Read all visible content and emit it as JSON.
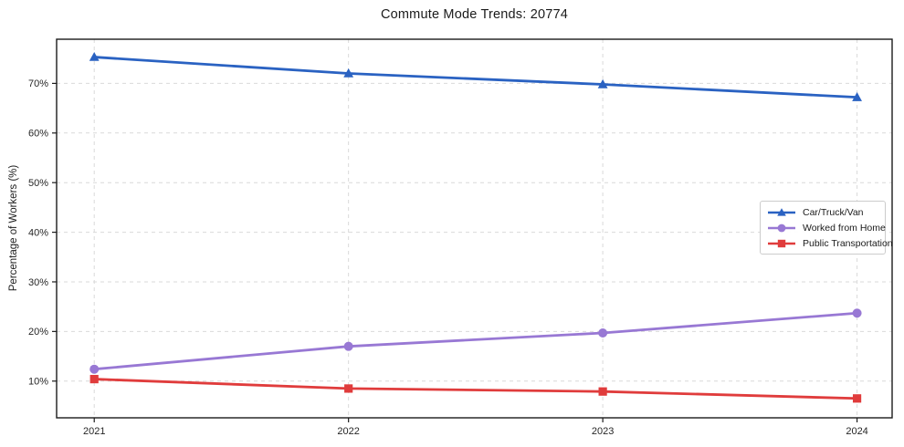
{
  "chart_data": {
    "type": "line",
    "title": "Commute Mode Trends: 20774",
    "xlabel": "",
    "ylabel": "Percentage of Workers (%)",
    "categories": [
      "2021",
      "2022",
      "2023",
      "2024"
    ],
    "series": [
      {
        "name": "Car/Truck/Van",
        "color": "#2a62c2",
        "marker": "triangle",
        "values": [
          75.3,
          72.0,
          69.8,
          67.2
        ]
      },
      {
        "name": "Worked from Home",
        "color": "#9878d4",
        "marker": "circle",
        "values": [
          12.4,
          17.0,
          19.7,
          23.7
        ]
      },
      {
        "name": "Public Transportation",
        "color": "#e03c3c",
        "marker": "square",
        "values": [
          10.4,
          8.5,
          7.9,
          6.5
        ]
      }
    ],
    "yticks": [
      10,
      20,
      30,
      40,
      50,
      60,
      70
    ],
    "ytick_labels": [
      "10%",
      "20%",
      "30%",
      "40%",
      "50%",
      "60%",
      "70%"
    ],
    "ylim": [
      2.6,
      78.9
    ],
    "xlim": [
      -0.148,
      3.138
    ],
    "grid": true,
    "grid_style": "dashed",
    "legend_position": "center right",
    "colors": {
      "grid": "#d9d9d9",
      "spine": "#1b1b1b",
      "tick_text": "#262626",
      "background": "#ffffff"
    }
  }
}
